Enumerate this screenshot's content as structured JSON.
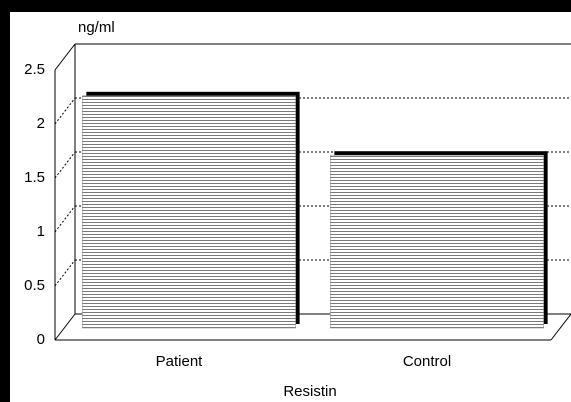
{
  "chart_data": {
    "type": "bar",
    "y_label": "ng/ml",
    "x_label": "Resistin",
    "categories": [
      "Patient",
      "Control"
    ],
    "values": [
      2.15,
      1.6
    ],
    "ylim": [
      0,
      2.5
    ],
    "yticks": [
      0,
      0.5,
      1,
      1.5,
      2,
      2.5
    ],
    "grid": true,
    "color": "#808080"
  }
}
